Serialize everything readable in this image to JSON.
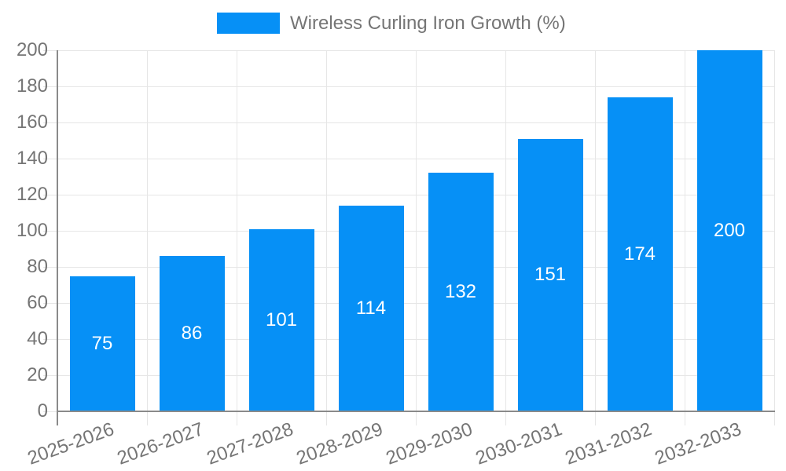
{
  "chart_data": {
    "type": "bar",
    "series_name": "Wireless Curling Iron Growth (%)",
    "categories": [
      "2025-2026",
      "2026-2027",
      "2027-2028",
      "2028-2029",
      "2029-2030",
      "2030-2031",
      "2031-2032",
      "2032-2033"
    ],
    "values": [
      75,
      86,
      101,
      114,
      132,
      151,
      174,
      200
    ],
    "ylim": [
      0,
      200
    ],
    "ytick_step": 20,
    "grid": true,
    "legend_position": "top",
    "value_labels_inside_bars": true,
    "x_label_rotation_deg": -20,
    "colors": {
      "bar": "#0690f6",
      "grid": "#e6e6e6",
      "axis": "#8a8a8a",
      "text": "#757575",
      "value_label": "#ffffff",
      "background": "#ffffff"
    }
  }
}
